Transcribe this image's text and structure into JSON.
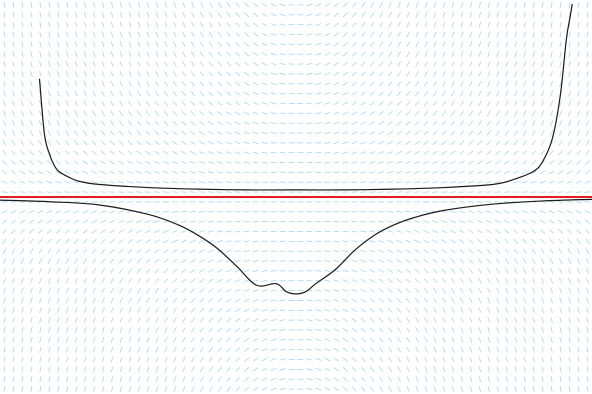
{
  "chart_data": {
    "type": "line",
    "title": "",
    "xlabel": "",
    "ylabel": "",
    "grid": false,
    "legend": "none",
    "xlim": [
      -3,
      3
    ],
    "ylim": [
      -2.5,
      2.5
    ],
    "field_color": "#a8d4ee",
    "series": [
      {
        "color": "#1a1a1a",
        "x": [
          -2.6,
          -2.55,
          -2.5,
          -2.45,
          -2.4,
          -2.3,
          -2.2,
          -2.0,
          -1.5,
          -1.0,
          -0.5,
          0.0,
          0.5,
          1.0,
          1.5,
          2.0,
          2.2,
          2.4,
          2.5,
          2.6,
          2.68,
          2.74,
          2.78,
          2.8
        ],
        "y": [
          1.5,
          0.8,
          0.55,
          0.4,
          0.32,
          0.25,
          0.2,
          0.16,
          0.12,
          0.1,
          0.09,
          0.09,
          0.09,
          0.1,
          0.12,
          0.16,
          0.22,
          0.32,
          0.45,
          0.75,
          1.3,
          2.0,
          2.3,
          2.45
        ]
      },
      {
        "color": "#1a1a1a",
        "x": [
          -3.0,
          -2.5,
          -2.0,
          -1.5,
          -1.2,
          -1.0,
          -0.8,
          -0.6,
          -0.4,
          -0.2,
          -0.1,
          0.0,
          0.1,
          0.2,
          0.4,
          0.6,
          0.8,
          1.0,
          1.2,
          1.5,
          2.0,
          2.5,
          3.0
        ],
        "y": [
          -0.04,
          -0.06,
          -0.1,
          -0.22,
          -0.35,
          -0.48,
          -0.65,
          -0.88,
          -1.12,
          -1.1,
          -1.2,
          -1.23,
          -1.2,
          -1.1,
          -0.92,
          -0.67,
          -0.48,
          -0.35,
          -0.26,
          -0.17,
          -0.09,
          -0.05,
          -0.03
        ]
      },
      {
        "color": "#e02020",
        "x": [
          -3.0,
          3.0
        ],
        "y": [
          0.0,
          0.0
        ]
      }
    ]
  }
}
